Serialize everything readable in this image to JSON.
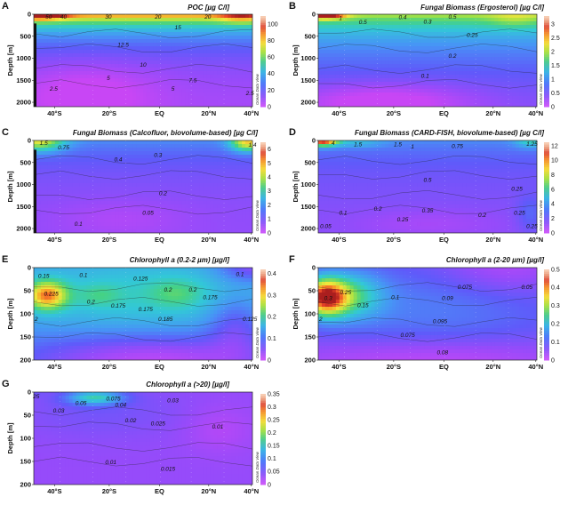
{
  "chart_data": [
    {
      "id": "A",
      "panel_label": "A",
      "type": "heatmap",
      "title": "POC [µg C/l]",
      "ylabel": "Depth [m]",
      "x_ticks": [
        "40°S",
        "20°S",
        "EQ",
        "20°N",
        "40°N"
      ],
      "y_ticks": [
        "0",
        "500",
        "1000",
        "1500",
        "2000"
      ],
      "ylim": [
        0,
        2100
      ],
      "colorbar": {
        "min": 0,
        "max": 110,
        "ticks": [
          "0",
          "20",
          "40",
          "60",
          "80",
          "100"
        ]
      },
      "scale_label": "Ocean Data View",
      "contour_labels": [
        {
          "text": "50",
          "lat": -42,
          "depth": 60
        },
        {
          "text": "40",
          "lat": -36,
          "depth": 60
        },
        {
          "text": "30",
          "lat": -18,
          "depth": 60
        },
        {
          "text": "20",
          "lat": 2,
          "depth": 60
        },
        {
          "text": "20",
          "lat": 22,
          "depth": 60
        },
        {
          "text": "15",
          "lat": 10,
          "depth": 300
        },
        {
          "text": "12.5",
          "lat": -12,
          "depth": 700
        },
        {
          "text": "10",
          "lat": -4,
          "depth": 1150
        },
        {
          "text": "5",
          "lat": -18,
          "depth": 1450
        },
        {
          "text": "7.5",
          "lat": 16,
          "depth": 1500
        },
        {
          "text": "2.5",
          "lat": -40,
          "depth": 1700
        },
        {
          "text": "5",
          "lat": 8,
          "depth": 1700
        },
        {
          "text": "2.5",
          "lat": 39,
          "depth": 1800
        }
      ]
    },
    {
      "id": "B",
      "panel_label": "B",
      "type": "heatmap",
      "title": "Fungal Biomass (Ergosterol) [µg C/l]",
      "ylabel": "Depth [m]",
      "x_ticks": [
        "40°S",
        "20°S",
        "EQ",
        "20°N",
        "40°N"
      ],
      "y_ticks": [
        "0",
        "500",
        "1000",
        "1500",
        "2000"
      ],
      "ylim": [
        0,
        2100
      ],
      "colorbar": {
        "min": 0,
        "max": 3.3,
        "ticks": [
          "0",
          "0.5",
          "1",
          "1.5",
          "2",
          "2.5",
          "3"
        ]
      },
      "scale_label": "Ocean Data View",
      "contour_labels": [
        {
          "text": "1",
          "lat": -39,
          "depth": 90
        },
        {
          "text": "0.5",
          "lat": -30,
          "depth": 180
        },
        {
          "text": "0.4",
          "lat": -14,
          "depth": 70
        },
        {
          "text": "0.3",
          "lat": -4,
          "depth": 170
        },
        {
          "text": "0.5",
          "lat": 6,
          "depth": 60
        },
        {
          "text": "0.25",
          "lat": 14,
          "depth": 470
        },
        {
          "text": "0.2",
          "lat": 6,
          "depth": 950
        },
        {
          "text": "0.1",
          "lat": -5,
          "depth": 1400
        }
      ]
    },
    {
      "id": "C",
      "panel_label": "C",
      "type": "heatmap",
      "title": "Fungal Biomass (Calcofluor, biovolume-based) [µg C/l]",
      "ylabel": "Depth [m]",
      "x_ticks": [
        "40°S",
        "20°S",
        "EQ",
        "20°N",
        "40°N"
      ],
      "y_ticks": [
        "0",
        "500",
        "1000",
        "1500",
        "2000"
      ],
      "ylim": [
        0,
        2100
      ],
      "colorbar": {
        "min": 0,
        "max": 6.5,
        "ticks": [
          "0",
          "1",
          "2",
          "3",
          "4",
          "5",
          "6"
        ]
      },
      "scale_label": "Ocean Data View",
      "contour_labels": [
        {
          "text": "1.5",
          "lat": -44,
          "depth": 60
        },
        {
          "text": "0.75",
          "lat": -36,
          "depth": 160
        },
        {
          "text": "0.4",
          "lat": -14,
          "depth": 430
        },
        {
          "text": "0.3",
          "lat": 2,
          "depth": 330
        },
        {
          "text": "1.4",
          "lat": 40,
          "depth": 100
        },
        {
          "text": "0.2",
          "lat": 4,
          "depth": 1200
        },
        {
          "text": "0.05",
          "lat": -2,
          "depth": 1650
        },
        {
          "text": "0.1",
          "lat": -30,
          "depth": 1900
        }
      ]
    },
    {
      "id": "D",
      "panel_label": "D",
      "type": "heatmap",
      "title": "Fungal Biomass (CARD-FISH, biovolume-based) [µg C/l]",
      "ylabel": "Depth [m]",
      "x_ticks": [
        "40°S",
        "20°S",
        "EQ",
        "20°N",
        "40°N"
      ],
      "y_ticks": [
        "0",
        "500",
        "1000",
        "1500",
        "2000"
      ],
      "ylim": [
        0,
        2100
      ],
      "colorbar": {
        "min": 0,
        "max": 12.5,
        "ticks": [
          "0",
          "2",
          "4",
          "6",
          "8",
          "10",
          "12"
        ]
      },
      "scale_label": "Ocean Data View",
      "contour_labels": [
        {
          "text": "4",
          "lat": -42,
          "depth": 60
        },
        {
          "text": "1.5",
          "lat": -32,
          "depth": 90
        },
        {
          "text": "1.5",
          "lat": -16,
          "depth": 90
        },
        {
          "text": "1",
          "lat": -10,
          "depth": 140
        },
        {
          "text": "0.75",
          "lat": 8,
          "depth": 130
        },
        {
          "text": "1.25",
          "lat": 38,
          "depth": 80
        },
        {
          "text": "0.5",
          "lat": -4,
          "depth": 900
        },
        {
          "text": "0.25",
          "lat": 32,
          "depth": 1100
        },
        {
          "text": "0.1",
          "lat": -38,
          "depth": 1650
        },
        {
          "text": "0.2",
          "lat": -24,
          "depth": 1550
        },
        {
          "text": "0.35",
          "lat": -4,
          "depth": 1600
        },
        {
          "text": "0.2",
          "lat": 18,
          "depth": 1700
        },
        {
          "text": "0.25",
          "lat": -14,
          "depth": 1800
        },
        {
          "text": "0.25",
          "lat": 33,
          "depth": 1650
        },
        {
          "text": "0.25",
          "lat": 38,
          "depth": 1950
        },
        {
          "text": "0.05",
          "lat": -45,
          "depth": 1950
        }
      ]
    },
    {
      "id": "E",
      "panel_label": "E",
      "type": "heatmap",
      "title": "Chlorophyll a (0.2-2 µm) [µg/l]",
      "ylabel": "Depth [m]",
      "x_ticks": [
        "40°S",
        "20°S",
        "EQ",
        "20°N",
        "40°N"
      ],
      "y_ticks": [
        "0",
        "50",
        "100",
        "150",
        "200"
      ],
      "ylim": [
        0,
        200
      ],
      "colorbar": {
        "min": 0,
        "max": 0.42,
        "ticks": [
          "0",
          "0.1",
          "0.2",
          "0.3",
          "0.4"
        ]
      },
      "scale_label": "Ocean Data View",
      "contour_labels": [
        {
          "text": "0.15",
          "lat": -44,
          "depth": 18
        },
        {
          "text": "0.1",
          "lat": -28,
          "depth": 16
        },
        {
          "text": "0.125",
          "lat": -5,
          "depth": 24
        },
        {
          "text": "0.1",
          "lat": 35,
          "depth": 14
        },
        {
          "text": "0.225",
          "lat": -41,
          "depth": 57
        },
        {
          "text": "0.2",
          "lat": -25,
          "depth": 74
        },
        {
          "text": "0.2",
          "lat": 6,
          "depth": 48
        },
        {
          "text": "0.2",
          "lat": 16,
          "depth": 48
        },
        {
          "text": "0.175",
          "lat": -14,
          "depth": 83
        },
        {
          "text": "0.175",
          "lat": -3,
          "depth": 90
        },
        {
          "text": "0.185",
          "lat": 5,
          "depth": 112
        },
        {
          "text": "0.175",
          "lat": 23,
          "depth": 64
        },
        {
          "text": "0.125",
          "lat": 39,
          "depth": 112
        },
        {
          "text": "2",
          "lat": -47,
          "depth": 112
        }
      ]
    },
    {
      "id": "F",
      "panel_label": "F",
      "type": "heatmap",
      "title": "Chlorophyll a (2-20 µm) [µg/l]",
      "ylabel": "Depth [m]",
      "x_ticks": [
        "40°S",
        "20°S",
        "EQ",
        "20°N",
        "40°N"
      ],
      "y_ticks": [
        "0",
        "50",
        "100",
        "150",
        "200"
      ],
      "ylim": [
        0,
        200
      ],
      "colorbar": {
        "min": 0,
        "max": 0.5,
        "ticks": [
          "0",
          "0.1",
          "0.2",
          "0.3",
          "0.4",
          "0.5"
        ]
      },
      "scale_label": "Ocean Data View",
      "contour_labels": [
        {
          "text": "0.3",
          "lat": -44,
          "depth": 66
        },
        {
          "text": "0.25",
          "lat": -37,
          "depth": 54
        },
        {
          "text": "0.15",
          "lat": -30,
          "depth": 82
        },
        {
          "text": "0.1",
          "lat": -17,
          "depth": 64
        },
        {
          "text": "0.09",
          "lat": 4,
          "depth": 66
        },
        {
          "text": "0.075",
          "lat": 11,
          "depth": 42
        },
        {
          "text": "0.05",
          "lat": 36,
          "depth": 42
        },
        {
          "text": "0.075",
          "lat": -12,
          "depth": 146
        },
        {
          "text": "0.095",
          "lat": 1,
          "depth": 116
        },
        {
          "text": "0.08",
          "lat": 2,
          "depth": 184
        },
        {
          "text": "2",
          "lat": -47,
          "depth": 112
        }
      ]
    },
    {
      "id": "G",
      "panel_label": "G",
      "type": "heatmap",
      "title": "Chlorophyll a (>20) [µg/l]",
      "ylabel": "Depth [m]",
      "x_ticks": [
        "40°S",
        "20°S",
        "EQ",
        "20°N",
        "40°N"
      ],
      "y_ticks": [
        "0",
        "50",
        "100",
        "150",
        "200"
      ],
      "ylim": [
        0,
        200
      ],
      "colorbar": {
        "min": 0,
        "max": 0.35,
        "ticks": [
          "0",
          "0.05",
          "0.1",
          "0.15",
          "0.2",
          "0.25",
          "0.3",
          "0.35"
        ]
      },
      "scale_label": "Ocean Data View",
      "contour_labels": [
        {
          "text": "25",
          "lat": -47,
          "depth": 10
        },
        {
          "text": "0.05",
          "lat": -29,
          "depth": 24
        },
        {
          "text": "0.075",
          "lat": -16,
          "depth": 14
        },
        {
          "text": "0.04",
          "lat": -13,
          "depth": 28
        },
        {
          "text": "0.03",
          "lat": 8,
          "depth": 18
        },
        {
          "text": "0.03",
          "lat": -38,
          "depth": 40
        },
        {
          "text": "0.02",
          "lat": -9,
          "depth": 62
        },
        {
          "text": "0.025",
          "lat": 2,
          "depth": 68
        },
        {
          "text": "0.01",
          "lat": 26,
          "depth": 75
        },
        {
          "text": "0.01",
          "lat": -17,
          "depth": 152
        },
        {
          "text": "0.015",
          "lat": 6,
          "depth": 166
        }
      ]
    }
  ]
}
